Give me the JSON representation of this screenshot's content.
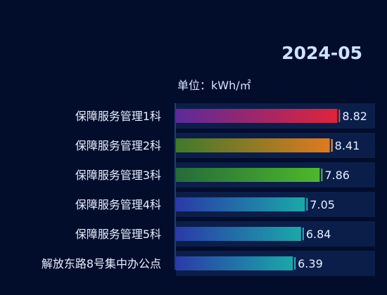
{
  "chart_data": {
    "type": "bar",
    "orientation": "horizontal",
    "period": "2024-05",
    "unit_label": "单位：kWh/㎡",
    "categories": [
      "保障服务管理1科",
      "保障服务管理2科",
      "保障服务管理3科",
      "保障服务管理4科",
      "保障服务管理5科",
      "解放东路8号集中办公点"
    ],
    "values": [
      8.82,
      8.41,
      7.86,
      7.05,
      6.84,
      6.39
    ],
    "value_labels": [
      "8.82",
      "8.41",
      "7.86",
      "7.05",
      "6.84",
      "6.39"
    ],
    "xlim": [
      0,
      9.4
    ],
    "bar_colors": [
      {
        "start": "#5b2a9a",
        "end": "#e0243a",
        "marker": "#ff3b3b"
      },
      {
        "start": "#3f7a2a",
        "end": "#e07a1e",
        "marker": "#ff9a1a"
      },
      {
        "start": "#246b3a",
        "end": "#4db82a",
        "marker": "#52c41a"
      },
      {
        "start": "#2a3aa8",
        "end": "#1aa8a8",
        "marker": "#18b6c6"
      },
      {
        "start": "#2a3aa8",
        "end": "#1aa8a8",
        "marker": "#18b6c6"
      },
      {
        "start": "#2a3aa8",
        "end": "#1aa8a8",
        "marker": "#18b6c6"
      }
    ],
    "background_color": "#020d2b",
    "track_color": "#0b1e4a",
    "axis_color": "#3f6fb0",
    "grid": false,
    "legend": "none"
  }
}
